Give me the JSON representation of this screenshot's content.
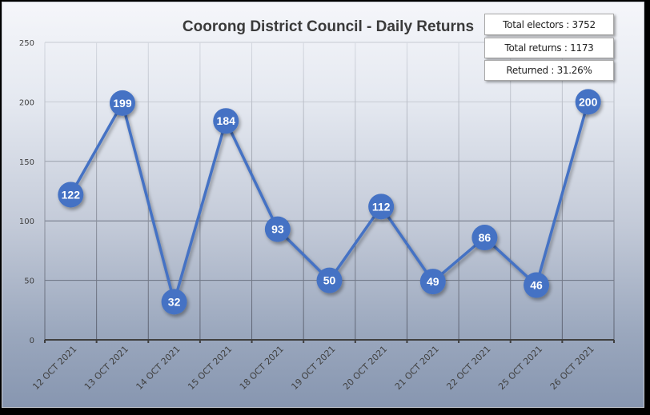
{
  "chart_data": {
    "type": "line",
    "title": "Coorong District Council - Daily Returns",
    "xlabel": "",
    "ylabel": "",
    "categories": [
      "12 OCT 2021",
      "13 OCT 2021",
      "14 OCT 2021",
      "15 OCT 2021",
      "18 OCT 2021",
      "19 OCT 2021",
      "20 OCT 2021",
      "21 OCT 2021",
      "22 OCT 2021",
      "25 OCT 2021",
      "26 OCT 2021"
    ],
    "series": [
      {
        "name": "Daily Returns",
        "values": [
          122,
          199,
          32,
          184,
          93,
          50,
          112,
          49,
          86,
          46,
          200
        ],
        "color": "#4472c4"
      }
    ],
    "ylim": [
      0,
      250
    ],
    "yticks": [
      0,
      50,
      100,
      150,
      200,
      250
    ],
    "grid": true,
    "data_labels": true,
    "legend": "none"
  },
  "stats": {
    "total_electors": "Total electors : 3752",
    "total_returns": "Total returns : 1173",
    "returned_pct": "Returned : 31.26%"
  },
  "colors": {
    "series": "#4472c4",
    "axis": "#404040",
    "title": "#3a3a3a"
  }
}
